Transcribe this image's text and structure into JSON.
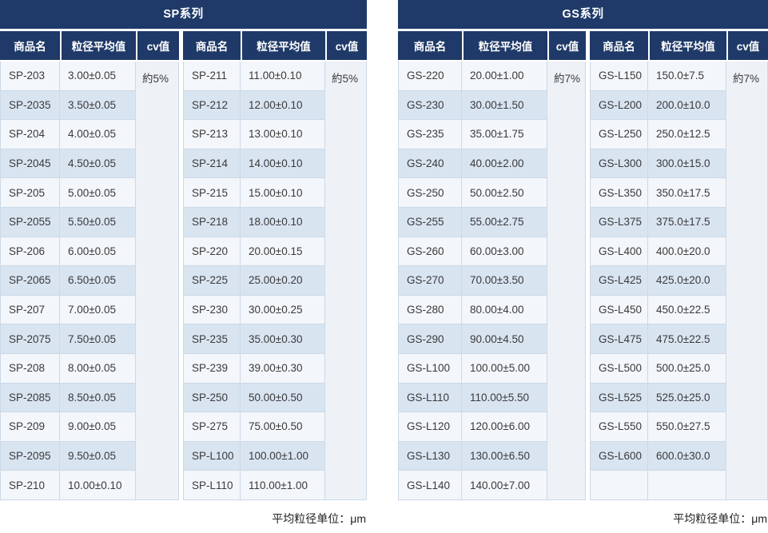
{
  "columns": [
    "商品名",
    "粒径平均值",
    "cv值"
  ],
  "unit_label": "平均粒径单位：μm",
  "colors": {
    "header_bg": "#1f3a68",
    "header_text": "#ffffff",
    "row_light": "#f3f6fa",
    "row_stripe": "#d9e4f1",
    "cv_cell_bg": "#eef2f7",
    "cell_border": "#ccd9e7",
    "body_text": "#3a3a3a"
  },
  "series": [
    {
      "title": "SP系列",
      "cv_left": "約5%",
      "cv_right": "約5%",
      "unit_note": "平均粒径单位：μm",
      "left_rows": [
        [
          "SP-203",
          "3.00±0.05"
        ],
        [
          "SP-2035",
          "3.50±0.05"
        ],
        [
          "SP-204",
          "4.00±0.05"
        ],
        [
          "SP-2045",
          "4.50±0.05"
        ],
        [
          "SP-205",
          "5.00±0.05"
        ],
        [
          "SP-2055",
          "5.50±0.05"
        ],
        [
          "SP-206",
          "6.00±0.05"
        ],
        [
          "SP-2065",
          "6.50±0.05"
        ],
        [
          "SP-207",
          "7.00±0.05"
        ],
        [
          "SP-2075",
          "7.50±0.05"
        ],
        [
          "SP-208",
          "8.00±0.05"
        ],
        [
          "SP-2085",
          "8.50±0.05"
        ],
        [
          "SP-209",
          "9.00±0.05"
        ],
        [
          "SP-2095",
          "9.50±0.05"
        ],
        [
          "SP-210",
          "10.00±0.10"
        ]
      ],
      "right_rows": [
        [
          "SP-211",
          "11.00±0.10"
        ],
        [
          "SP-212",
          "12.00±0.10"
        ],
        [
          "SP-213",
          "13.00±0.10"
        ],
        [
          "SP-214",
          "14.00±0.10"
        ],
        [
          "SP-215",
          "15.00±0.10"
        ],
        [
          "SP-218",
          "18.00±0.10"
        ],
        [
          "SP-220",
          "20.00±0.15"
        ],
        [
          "SP-225",
          "25.00±0.20"
        ],
        [
          "SP-230",
          "30.00±0.25"
        ],
        [
          "SP-235",
          "35.00±0.30"
        ],
        [
          "SP-239",
          "39.00±0.30"
        ],
        [
          "SP-250",
          "50.00±0.50"
        ],
        [
          "SP-275",
          "75.00±0.50"
        ],
        [
          "SP-L100",
          "100.00±1.00"
        ],
        [
          "SP-L110",
          "110.00±1.00"
        ]
      ]
    },
    {
      "title": "GS系列",
      "cv_left": "約7%",
      "cv_right": "約7%",
      "unit_note": "平均粒径单位：μm",
      "left_rows": [
        [
          "GS-220",
          "20.00±1.00"
        ],
        [
          "GS-230",
          "30.00±1.50"
        ],
        [
          "GS-235",
          "35.00±1.75"
        ],
        [
          "GS-240",
          "40.00±2.00"
        ],
        [
          "GS-250",
          "50.00±2.50"
        ],
        [
          "GS-255",
          "55.00±2.75"
        ],
        [
          "GS-260",
          "60.00±3.00"
        ],
        [
          "GS-270",
          "70.00±3.50"
        ],
        [
          "GS-280",
          "80.00±4.00"
        ],
        [
          "GS-290",
          "90.00±4.50"
        ],
        [
          "GS-L100",
          "100.00±5.00"
        ],
        [
          "GS-L110",
          "110.00±5.50"
        ],
        [
          "GS-L120",
          "120.00±6.00"
        ],
        [
          "GS-L130",
          "130.00±6.50"
        ],
        [
          "GS-L140",
          "140.00±7.00"
        ]
      ],
      "right_rows": [
        [
          "GS-L150",
          "150.0±7.5"
        ],
        [
          "GS-L200",
          "200.0±10.0"
        ],
        [
          "GS-L250",
          "250.0±12.5"
        ],
        [
          "GS-L300",
          "300.0±15.0"
        ],
        [
          "GS-L350",
          "350.0±17.5"
        ],
        [
          "GS-L375",
          "375.0±17.5"
        ],
        [
          "GS-L400",
          "400.0±20.0"
        ],
        [
          "GS-L425",
          "425.0±20.0"
        ],
        [
          "GS-L450",
          "450.0±22.5"
        ],
        [
          "GS-L475",
          "475.0±22.5"
        ],
        [
          "GS-L500",
          "500.0±25.0"
        ],
        [
          "GS-L525",
          "525.0±25.0"
        ],
        [
          "GS-L550",
          "550.0±27.5"
        ],
        [
          "GS-L600",
          "600.0±30.0"
        ],
        [
          "",
          ""
        ]
      ]
    }
  ]
}
